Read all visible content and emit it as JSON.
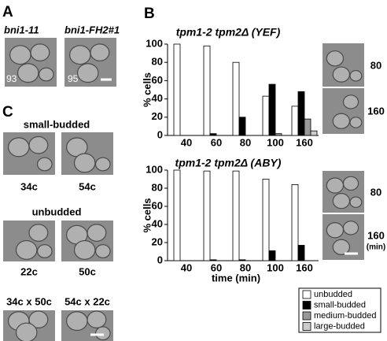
{
  "panel_a": {
    "label": "A",
    "strains": [
      "bni1-11",
      "bni1-FH2#1"
    ],
    "counts": [
      93,
      95
    ]
  },
  "panel_b": {
    "label": "B",
    "image_labels": [
      "80",
      "160",
      "80",
      "160",
      "(min)"
    ]
  },
  "panel_c": {
    "label": "C",
    "small_budded": {
      "title": "small-budded",
      "cells": [
        "34c",
        "54c"
      ]
    },
    "unbudded": {
      "title": "unbudded",
      "cells": [
        "22c",
        "50c"
      ]
    },
    "pairs": [
      "34c x 50c",
      "54c x 22c"
    ]
  },
  "chart_data": [
    {
      "type": "bar",
      "title": "tpm1-2 tpm2Δ (YEF)",
      "ylabel": "% cells",
      "categories": [
        "40",
        "60",
        "80",
        "100",
        "160"
      ],
      "series": [
        {
          "color": "#ffffff",
          "values": [
            100,
            98,
            80,
            43,
            32
          ]
        },
        {
          "color": "#000000",
          "values": [
            0,
            2,
            20,
            56,
            48
          ]
        },
        {
          "color": "#999999",
          "values": [
            0,
            0,
            0,
            2,
            18
          ]
        },
        {
          "color": "#cccccc",
          "values": [
            0,
            0,
            0,
            0,
            5
          ]
        }
      ],
      "ylim": [
        0,
        100
      ],
      "yticks": [
        0,
        20,
        40,
        60,
        80,
        100
      ]
    },
    {
      "type": "bar",
      "title": "tpm1-2 tpm2Δ (ABY)",
      "ylabel": "% cells",
      "xlabel": "time (min)",
      "categories": [
        "40",
        "60",
        "80",
        "100",
        "160"
      ],
      "series": [
        {
          "name": "unbudded",
          "color": "#ffffff",
          "values": [
            100,
            99,
            99,
            90,
            84
          ]
        },
        {
          "name": "small-budded",
          "color": "#000000",
          "values": [
            0,
            1,
            1,
            11,
            17
          ]
        },
        {
          "name": "medium-budded",
          "color": "#999999",
          "values": [
            0,
            0,
            0,
            0,
            0
          ]
        },
        {
          "name": "large-budded",
          "color": "#cccccc",
          "values": [
            0,
            0,
            0,
            0,
            0
          ]
        }
      ],
      "ylim": [
        0,
        100
      ],
      "yticks": [
        0,
        20,
        40,
        60,
        80,
        100
      ]
    }
  ]
}
